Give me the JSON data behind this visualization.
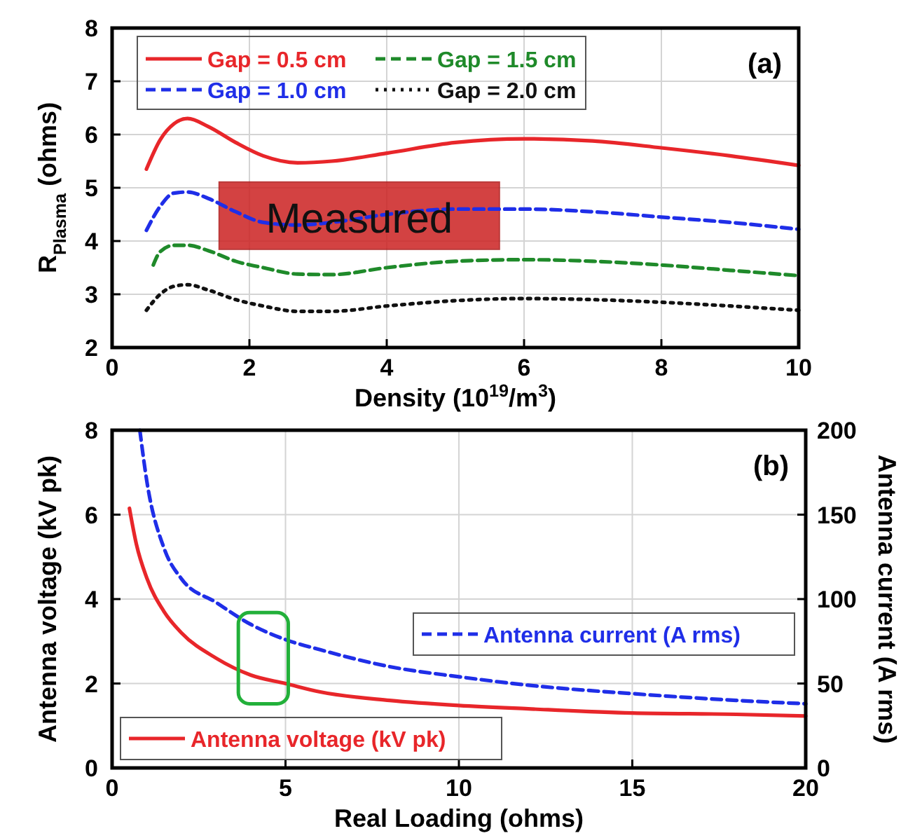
{
  "chart_data": [
    {
      "type": "line",
      "xlabel": "Density (10$^{19}$/m$^{3}$)",
      "ylabel": "R$_{Plasma}$ (ohms)",
      "xlim": [
        0,
        10
      ],
      "xticks": [
        0,
        2,
        4,
        6,
        8,
        10
      ],
      "ylim": [
        2,
        8
      ],
      "yticks": [
        2,
        3,
        4,
        5,
        6,
        7,
        8
      ],
      "grid": true,
      "legend": "top left",
      "annotations": [
        "(a)",
        {
          "text": "Measured",
          "x": 3.6,
          "y": 4.45
        }
      ],
      "series": [
        {
          "name": "Gap = 0.5 cm",
          "color": "#e8262a",
          "line_style": "solid",
          "x": [
            0.5,
            0.7,
            0.9,
            1.1,
            1.4,
            1.8,
            2.2,
            2.7,
            3.2,
            4,
            5,
            6,
            7,
            8,
            9,
            10
          ],
          "values": [
            5.35,
            5.9,
            6.2,
            6.3,
            6.15,
            5.85,
            5.6,
            5.47,
            5.5,
            5.65,
            5.85,
            5.92,
            5.88,
            5.75,
            5.6,
            5.42
          ]
        },
        {
          "name": "Gap = 1.0 cm",
          "color": "#1f2ee8",
          "line_style": "dashed",
          "x": [
            0.5,
            0.7,
            0.9,
            1.1,
            1.4,
            1.8,
            2.2,
            2.7,
            3.2,
            4,
            5,
            6,
            7,
            8,
            9,
            10
          ],
          "values": [
            4.2,
            4.65,
            4.9,
            4.92,
            4.8,
            4.55,
            4.35,
            4.3,
            4.35,
            4.5,
            4.6,
            4.6,
            4.55,
            4.45,
            4.35,
            4.22
          ]
        },
        {
          "name": "Gap = 1.5 cm",
          "color": "#1f8a2a",
          "line_style": "dashed",
          "x": [
            0.6,
            0.7,
            0.9,
            1.1,
            1.4,
            1.8,
            2.2,
            2.7,
            3.2,
            4,
            5,
            6,
            7,
            8,
            9,
            10
          ],
          "values": [
            3.55,
            3.8,
            3.92,
            3.92,
            3.82,
            3.62,
            3.5,
            3.38,
            3.37,
            3.5,
            3.62,
            3.65,
            3.62,
            3.55,
            3.45,
            3.35
          ]
        },
        {
          "name": "Gap = 2.0 cm",
          "color": "#111111",
          "line_style": "dotted",
          "x": [
            0.5,
            0.7,
            0.9,
            1.1,
            1.4,
            1.8,
            2.2,
            2.7,
            3.2,
            4,
            5,
            6,
            7,
            8,
            9,
            10
          ],
          "values": [
            2.7,
            3.0,
            3.15,
            3.18,
            3.08,
            2.9,
            2.78,
            2.68,
            2.68,
            2.78,
            2.88,
            2.92,
            2.9,
            2.85,
            2.78,
            2.7
          ]
        }
      ]
    },
    {
      "type": "line",
      "xlabel": "Real Loading (ohms)",
      "ylabel": "Antenna voltage (kV pk)",
      "y2label": "Antenna current (A rms)",
      "xlim": [
        0,
        20
      ],
      "xticks": [
        0,
        5,
        10,
        15,
        20
      ],
      "ylim": [
        0,
        8
      ],
      "yticks": [
        0,
        2,
        4,
        6,
        8
      ],
      "y2lim": [
        0,
        200
      ],
      "y2ticks": [
        0,
        50,
        100,
        150,
        200
      ],
      "grid": true,
      "legend": "bottom left",
      "annotations": [
        "(b)"
      ],
      "series": [
        {
          "name": "Antenna voltage (kV pk)",
          "color": "#e8262a",
          "line_style": "solid",
          "x": [
            0.5,
            0.7,
            1,
            1.5,
            2,
            3,
            4,
            5,
            6,
            8,
            10,
            12,
            15,
            18,
            20
          ],
          "values": [
            6.15,
            5.3,
            4.5,
            3.7,
            3.2,
            2.6,
            2.2,
            2.0,
            1.8,
            1.6,
            1.48,
            1.4,
            1.3,
            1.27,
            1.23
          ]
        },
        {
          "name": "Antenna current (A rms)",
          "color": "#1f2ee8",
          "line_style": "dashed",
          "axis": "y2",
          "x": [
            0.8,
            1,
            1.5,
            2,
            3,
            4,
            5,
            6,
            8,
            10,
            12,
            15,
            18,
            20
          ],
          "values": [
            200,
            170,
            130,
            112,
            98,
            85,
            76,
            70,
            60,
            54,
            49,
            44,
            40,
            38
          ]
        }
      ]
    }
  ]
}
